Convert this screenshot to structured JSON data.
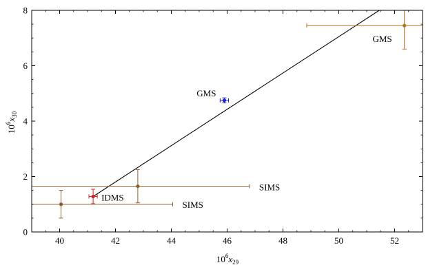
{
  "chart_data": {
    "type": "scatter",
    "xlabel": {
      "prefix": "10",
      "exp": "6",
      "var": "x",
      "sub": "29"
    },
    "ylabel": {
      "prefix": "10",
      "exp": "6",
      "var": "x",
      "sub": "30"
    },
    "xlim": [
      39,
      53
    ],
    "ylim": [
      0,
      8
    ],
    "xticks": [
      40,
      42,
      44,
      46,
      48,
      50,
      52
    ],
    "yticks": [
      0,
      2,
      4,
      6,
      8
    ],
    "grid": false,
    "points": [
      {
        "x": 52.35,
        "y": 7.45,
        "xerr_low": 48.85,
        "xerr_high": 53.0,
        "yerr_low": 6.6,
        "yerr_high": 8.0,
        "color": "#b8731f",
        "label": "GMS"
      },
      {
        "x": 45.9,
        "y": 4.75,
        "xerr_low": 45.75,
        "xerr_high": 46.05,
        "yerr_low": 4.66,
        "yerr_high": 4.84,
        "color": "#1f1fdd",
        "label": "GMS"
      },
      {
        "x": 41.2,
        "y": 1.28,
        "xerr_low": 41.05,
        "xerr_high": 41.35,
        "yerr_low": 1.02,
        "yerr_high": 1.54,
        "color": "#d42020",
        "label": "IDMS"
      },
      {
        "x": 42.8,
        "y": 1.65,
        "xerr_low": 39.0,
        "xerr_high": 46.8,
        "yerr_low": 1.05,
        "yerr_high": 2.25,
        "color": "#8a5e30",
        "label": "SIMS"
      },
      {
        "x": 40.05,
        "y": 1.0,
        "xerr_low": 39.0,
        "xerr_high": 44.05,
        "yerr_low": 0.5,
        "yerr_high": 1.5,
        "color": "#8a5e30",
        "label": "SIMS"
      }
    ],
    "fit_line": {
      "x": [
        41.2,
        51.45
      ],
      "y": [
        1.28,
        8.0
      ],
      "color": "#000000"
    }
  }
}
